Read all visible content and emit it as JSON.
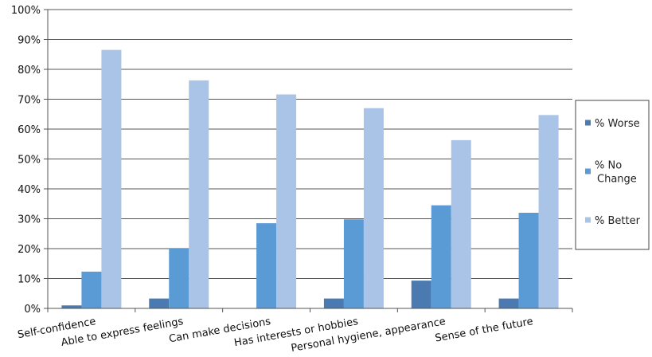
{
  "chart_data": {
    "type": "bar",
    "title": "",
    "xlabel": "",
    "ylabel": "",
    "ylim": [
      0,
      100
    ],
    "yticks": [
      "0%",
      "10%",
      "20%",
      "30%",
      "40%",
      "50%",
      "60%",
      "70%",
      "80%",
      "90%",
      "100%"
    ],
    "grid": true,
    "legend_position": "right",
    "categories": [
      "Self-confidence",
      "Able to express feelings",
      "Can make decisions",
      "Has interests or hobbies",
      "Personal hygiene, appearance",
      "Sense of the future"
    ],
    "series": [
      {
        "name": "% Worse",
        "color": "#4a7ab0",
        "values": [
          1,
          3.3,
          0,
          3.3,
          9.3,
          3.3
        ]
      },
      {
        "name": "% No Change",
        "color": "#5b9bd5",
        "values": [
          12.3,
          20.2,
          28.5,
          29.8,
          34.5,
          32
        ]
      },
      {
        "name": "% Better",
        "color": "#a9c4e6",
        "values": [
          86.5,
          76.3,
          71.6,
          67,
          56.3,
          64.7
        ]
      }
    ],
    "legend_lines": [
      [
        "% Worse"
      ],
      [
        "% No",
        "Change"
      ],
      [
        "% Better"
      ]
    ]
  }
}
